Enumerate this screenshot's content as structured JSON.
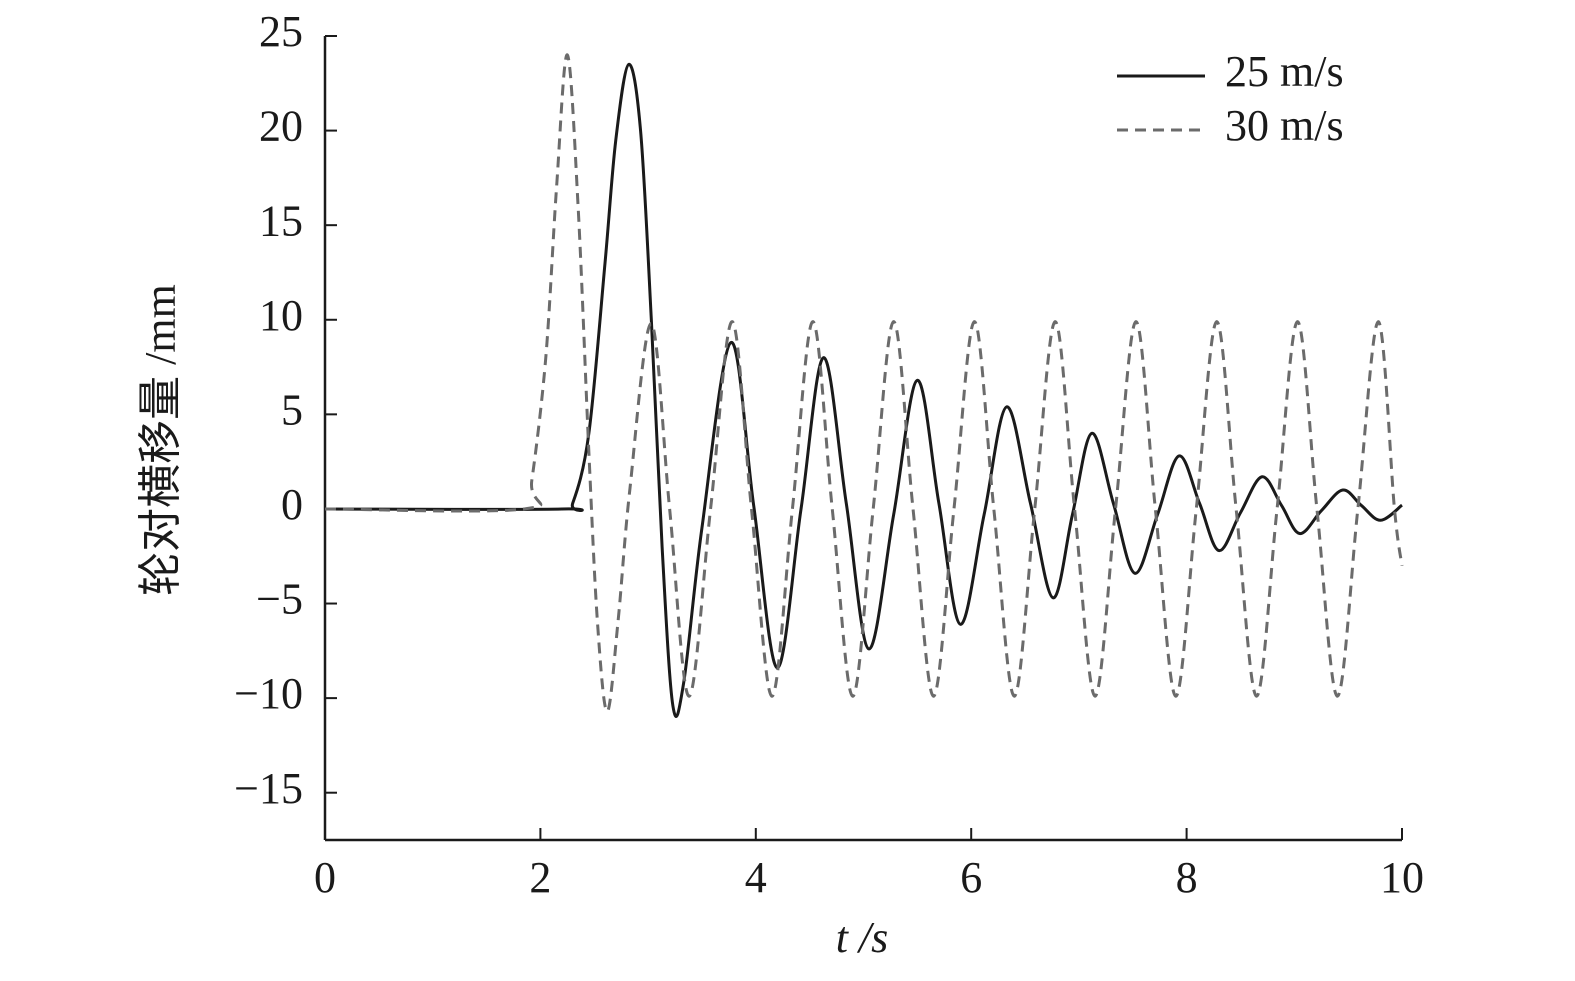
{
  "chart_data": {
    "type": "line",
    "x_label": "t /s",
    "y_label": "轮对横移量 /mm",
    "xlim": [
      0,
      10
    ],
    "xticks": [
      0,
      2,
      4,
      6,
      8,
      10
    ],
    "ylim": [
      -17.5,
      25
    ],
    "yticks": [
      {
        "value": -15,
        "label": "−15"
      },
      {
        "value": -10,
        "label": "−10"
      },
      {
        "value": -5,
        "label": "−5"
      },
      0,
      5,
      10,
      15,
      20,
      25
    ],
    "legend": "upper right",
    "series": [
      {
        "name": "25 m/s",
        "color": "#1a1a1a",
        "linestyle": "solid",
        "x": [
          0,
          2.2,
          2.3,
          2.45,
          2.6,
          2.7,
          2.82,
          2.93,
          3.03,
          3.13,
          3.23,
          3.33,
          3.5,
          3.77,
          3.98,
          4.2,
          4.42,
          4.63,
          4.84,
          5.05,
          5.28,
          5.5,
          5.7,
          5.9,
          6.12,
          6.33,
          6.55,
          6.76,
          6.94,
          7.12,
          7.32,
          7.52,
          7.73,
          7.93,
          8.12,
          8.3,
          8.5,
          8.7,
          8.88,
          9.05,
          9.25,
          9.45,
          9.62,
          9.8,
          10
        ],
        "values": [
          0,
          0,
          0.3,
          4,
          13,
          19.5,
          23.5,
          20,
          10,
          -2,
          -10.4,
          -9.2,
          -1,
          8.8,
          0.2,
          -8.4,
          0,
          8.0,
          0.3,
          -7.4,
          -0.3,
          6.8,
          0.3,
          -6.1,
          -0.3,
          5.4,
          0.3,
          -4.7,
          -0.3,
          4.0,
          0.3,
          -3.4,
          -0.3,
          2.8,
          0.3,
          -2.2,
          -0.2,
          1.7,
          0.2,
          -1.3,
          -0.1,
          1.0,
          0.2,
          -0.6,
          0.2
        ]
      },
      {
        "name": "30 m/s",
        "color": "#6b6b6b",
        "linestyle": "dashed",
        "x": [
          0,
          1.85,
          1.92,
          2.05,
          2.15,
          2.25,
          2.35,
          2.45,
          2.53,
          2.62,
          2.72,
          2.83,
          3.03,
          3.2,
          3.38,
          3.58,
          3.78,
          3.96,
          4.15,
          4.34,
          4.53,
          4.71,
          4.9,
          5.09,
          5.28,
          5.46,
          5.65,
          5.84,
          6.03,
          6.21,
          6.4,
          6.59,
          6.78,
          6.96,
          7.15,
          7.34,
          7.53,
          7.71,
          7.9,
          8.09,
          8.28,
          8.46,
          8.65,
          8.84,
          9.03,
          9.21,
          9.4,
          9.59,
          9.78,
          9.93,
          10
        ],
        "values": [
          0,
          0,
          1.5,
          8,
          17,
          24,
          16,
          3,
          -6,
          -10.7,
          -6,
          1,
          9.8,
          0,
          -9.9,
          0,
          9.9,
          0,
          -9.9,
          0,
          9.9,
          0,
          -9.9,
          0,
          9.9,
          0,
          -9.9,
          0,
          9.9,
          0,
          -9.9,
          0,
          9.9,
          0,
          -9.9,
          0,
          9.9,
          0,
          -9.9,
          0,
          9.9,
          0,
          -9.9,
          0,
          9.9,
          0,
          -9.9,
          0,
          9.9,
          0,
          -3
        ]
      }
    ]
  }
}
